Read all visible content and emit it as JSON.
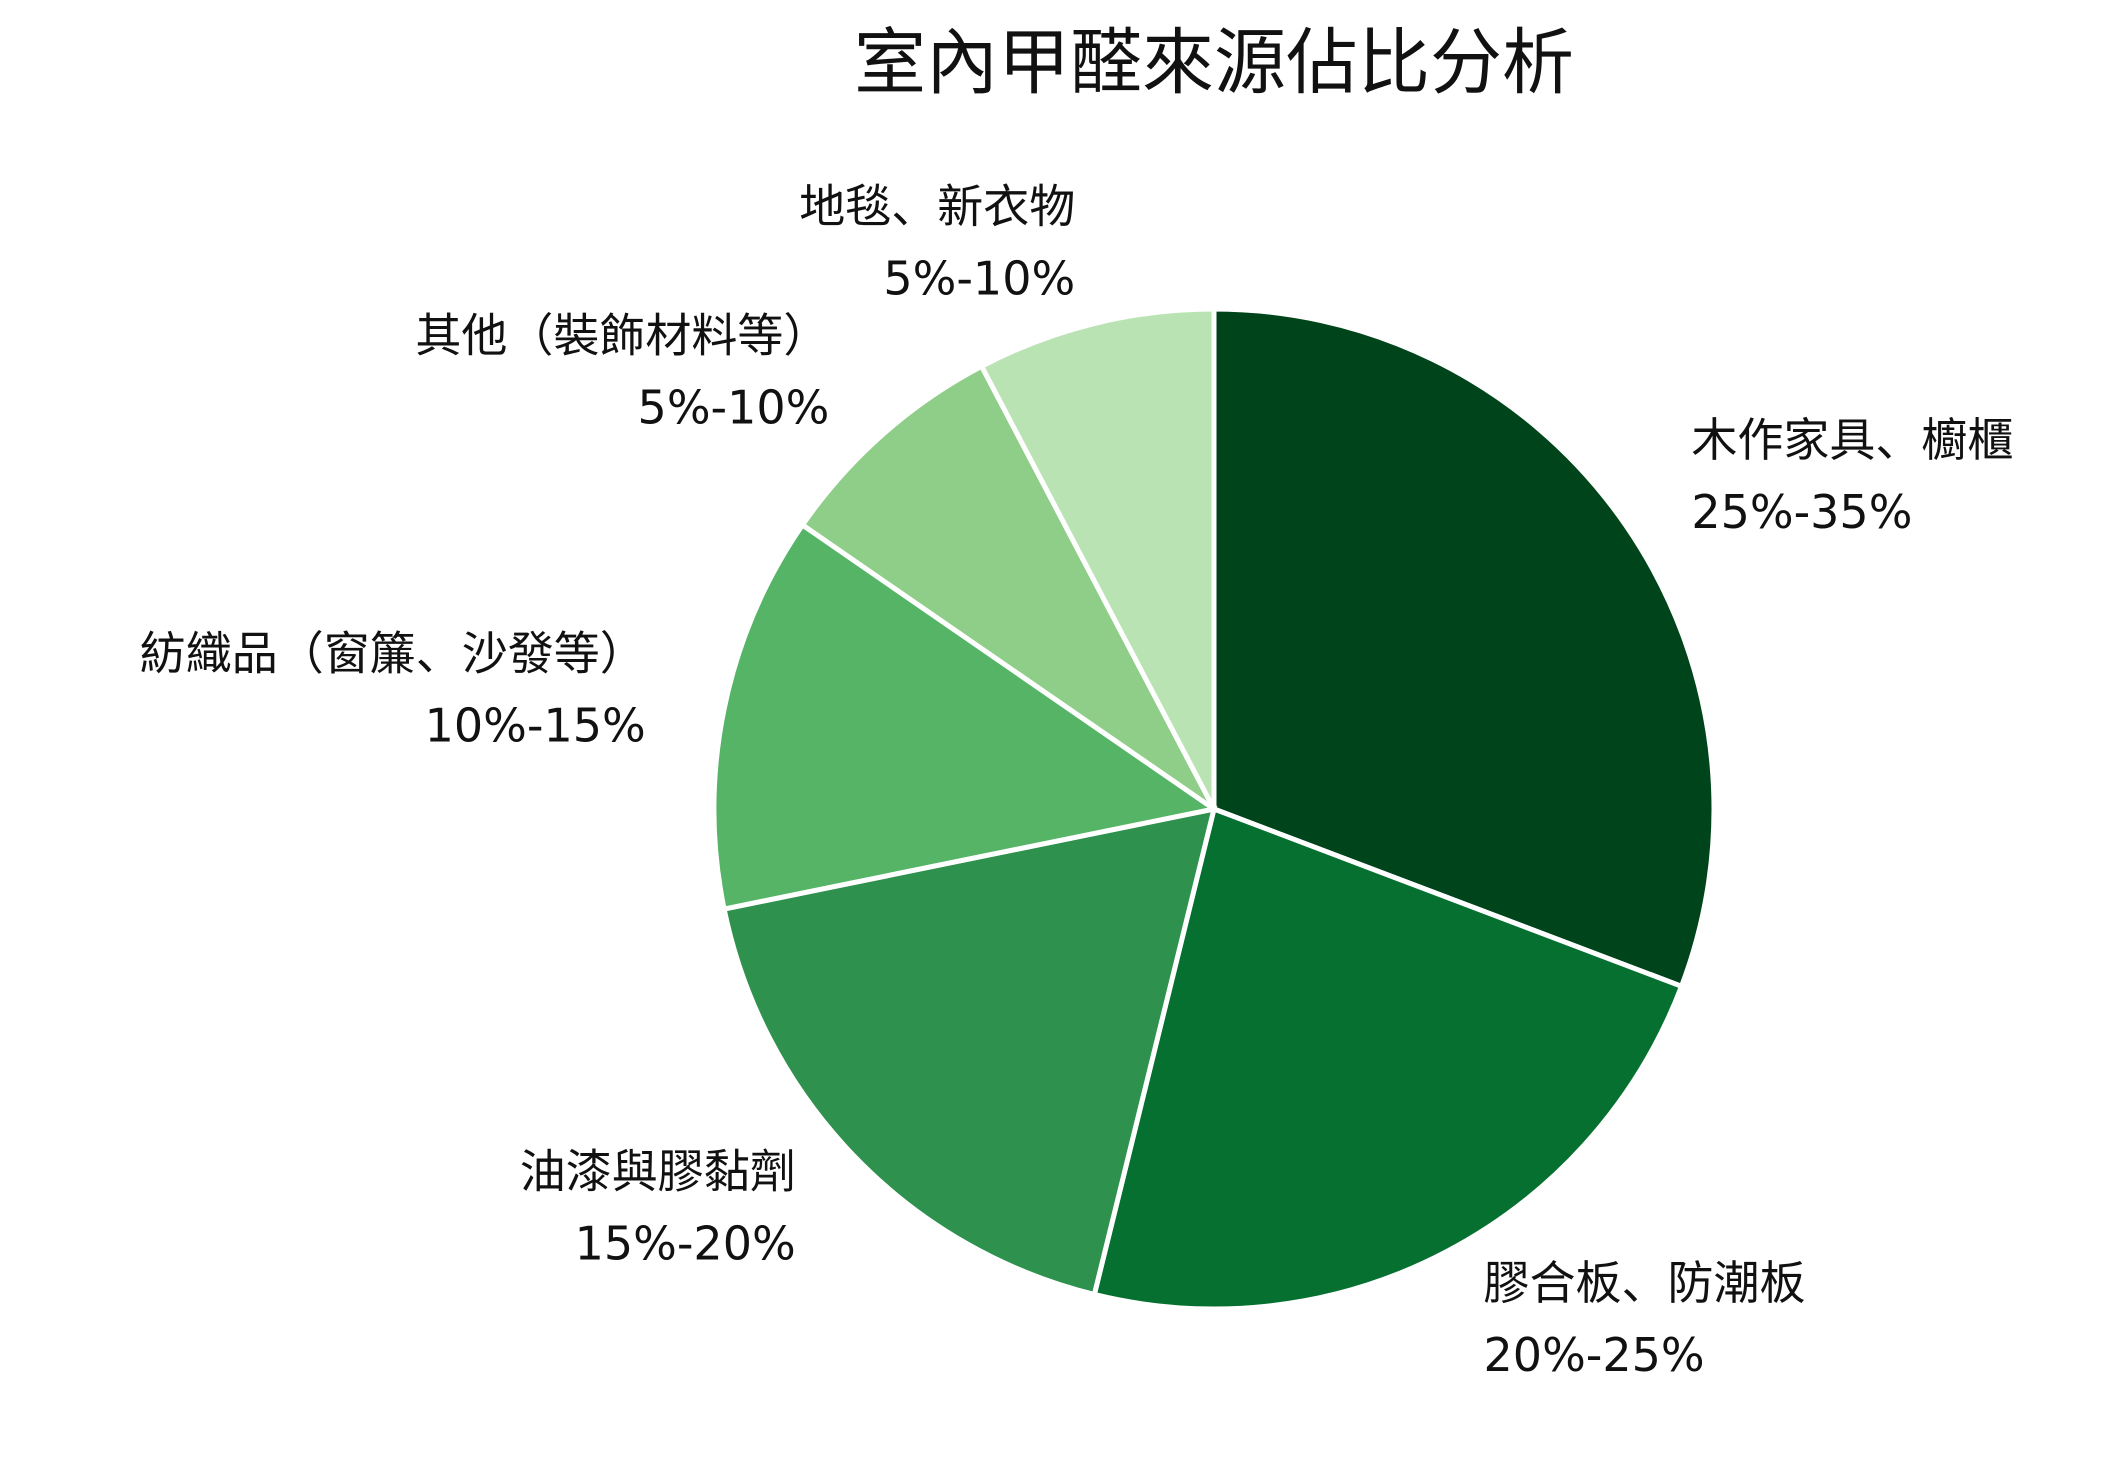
{
  "chart_data": {
    "type": "pie",
    "title": "室內甲醛來源佔比分析",
    "categories": [
      "木作家具、櫥櫃",
      "膠合板、防潮板",
      "油漆與膠黏劑",
      "紡織品（窗簾、沙發等）",
      "其他（裝飾材料等）",
      "地毯、新衣物"
    ],
    "ranges": [
      "25%-35%",
      "20%-25%",
      "15%-20%",
      "10%-15%",
      "5%-10%",
      "5%-10%"
    ],
    "values": [
      30,
      22.5,
      17.5,
      12.5,
      7.5,
      7.5
    ],
    "colors": [
      "#00441b",
      "#067030",
      "#2e914d",
      "#56b467",
      "#8fce88",
      "#b9e3b2"
    ]
  }
}
